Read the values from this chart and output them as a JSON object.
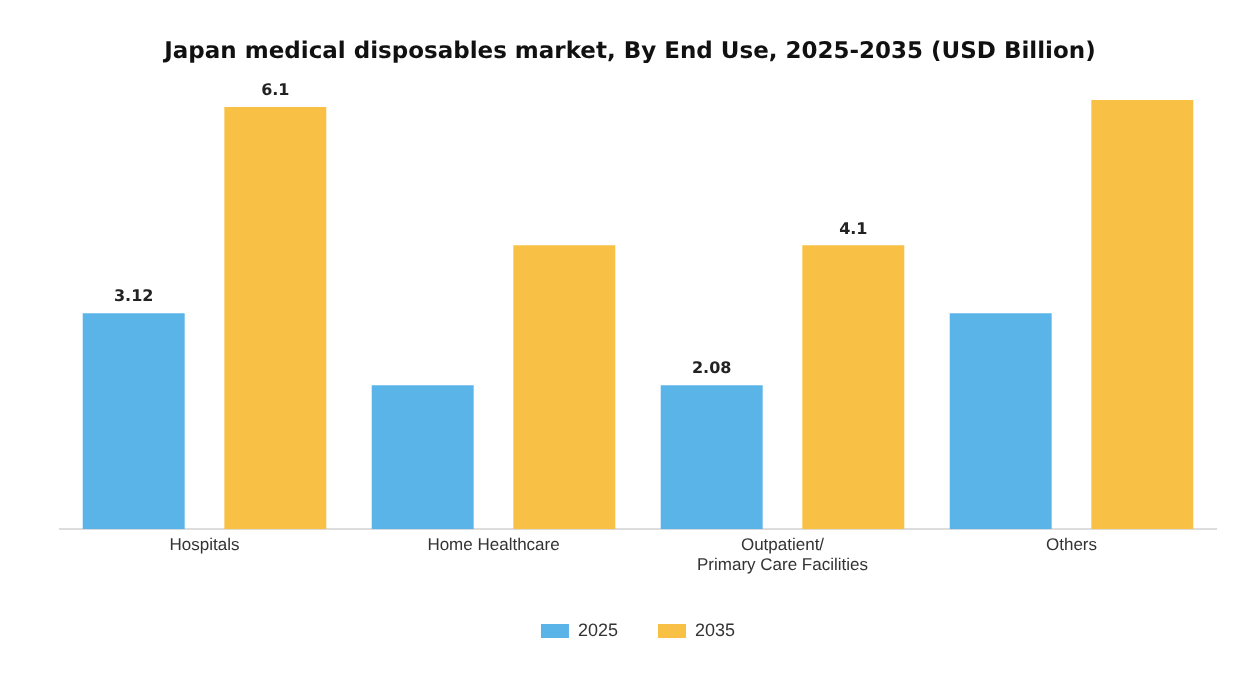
{
  "chart_data": {
    "type": "bar",
    "title": "Japan medical disposables market, By End Use, 2025-2035 (USD Billion)",
    "categories": [
      "Hospitals",
      "Home Healthcare",
      "Outpatient/Primary Care Facilities",
      "Others"
    ],
    "series": [
      {
        "name": "2025",
        "color": "#5ab4e8",
        "values": [
          3.12,
          2.08,
          2.08,
          3.12
        ],
        "value_labels": [
          "3.12",
          null,
          "2.08",
          null
        ]
      },
      {
        "name": "2035",
        "color": "#f8c146",
        "values": [
          6.1,
          4.1,
          4.1,
          6.2
        ],
        "value_labels": [
          "6.1",
          null,
          "4.1",
          null
        ]
      }
    ],
    "ylim": [
      0,
      6.2
    ],
    "tick_labels": "x",
    "grid": false,
    "legend": "bottom"
  }
}
